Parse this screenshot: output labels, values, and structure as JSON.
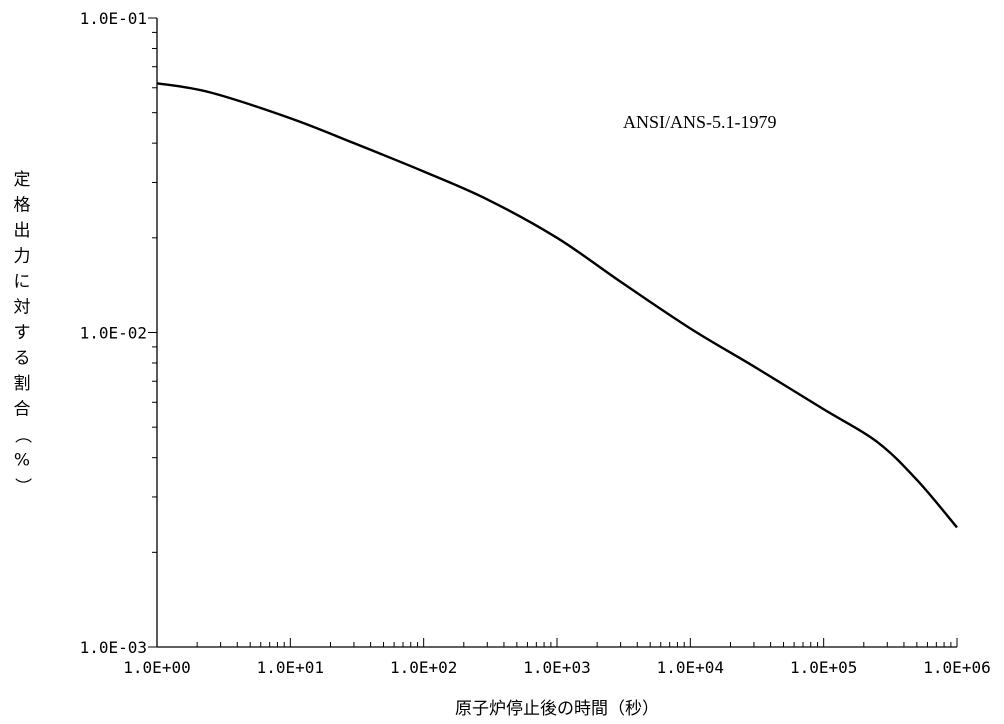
{
  "chart_data": {
    "type": "line",
    "x_scale": "log",
    "y_scale": "log",
    "xlim": [
      1,
      1000000
    ],
    "ylim": [
      0.001,
      0.1
    ],
    "x_tick_labels": [
      "1.0E+00",
      "1.0E+01",
      "1.0E+02",
      "1.0E+03",
      "1.0E+04",
      "1.0E+05",
      "1.0E+06"
    ],
    "y_tick_labels": [
      "1.0E-03",
      "1.0E-02",
      "1.0E-01"
    ],
    "xlabel": "原子炉停止後の時間（秒）",
    "ylabel": "定格出力に対する割合（%）",
    "annotation": "ANSI/ANS-5.1-1979",
    "grid": false,
    "series": [
      {
        "x": [
          1,
          2.5,
          10,
          30,
          100,
          300,
          1000,
          3000,
          10000,
          30000,
          100000,
          250000,
          500000,
          1000000
        ],
        "y": [
          0.062,
          0.058,
          0.048,
          0.04,
          0.0325,
          0.0265,
          0.02,
          0.0145,
          0.0103,
          0.0078,
          0.0057,
          0.0045,
          0.0034,
          0.0024
        ]
      }
    ]
  }
}
